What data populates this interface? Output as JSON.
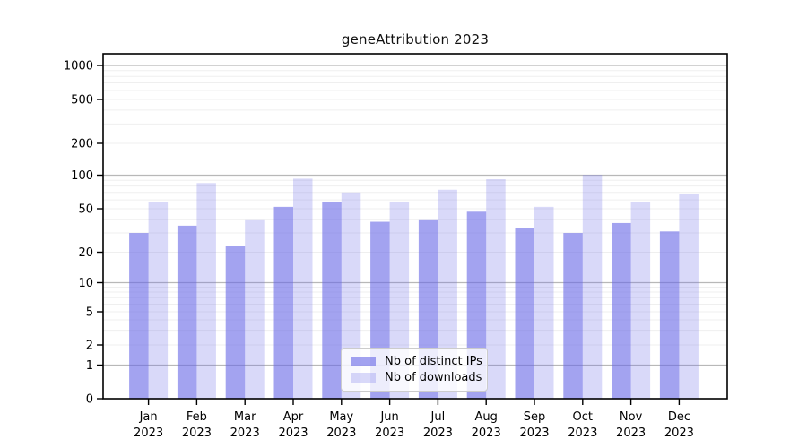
{
  "figure": {
    "title": "geneAttribution 2023"
  },
  "chart_data": {
    "type": "bar",
    "title": "geneAttribution 2023",
    "categories": [
      "Jan 2023",
      "Feb 2023",
      "Mar 2023",
      "Apr 2023",
      "May 2023",
      "Jun 2023",
      "Jul 2023",
      "Aug 2023",
      "Sep 2023",
      "Oct 2023",
      "Nov 2023",
      "Dec 2023"
    ],
    "series": [
      {
        "name": "Nb of distinct IPs",
        "color": "#6666E6",
        "alpha": 0.6,
        "values": [
          30,
          35,
          23,
          52,
          58,
          38,
          40,
          47,
          33,
          30,
          37,
          31
        ]
      },
      {
        "name": "Nb of downloads",
        "color": "#6666E6",
        "alpha": 0.25,
        "values": [
          57,
          85,
          40,
          93,
          70,
          58,
          74,
          92,
          52,
          101,
          57,
          68
        ]
      }
    ],
    "xlabel": "",
    "ylabel": "",
    "y_scale": "log-like",
    "y_ticks": [
      0,
      1,
      2,
      5,
      10,
      20,
      50,
      100,
      200,
      500,
      1000
    ],
    "y_tick_labels": [
      "0",
      "1",
      "2",
      "5",
      "10",
      "20",
      "50",
      "100",
      "200",
      "500",
      "1000"
    ],
    "ylim": [
      0,
      1400
    ],
    "grid": true,
    "legend_position": "bottom-center"
  },
  "legend": {
    "items": [
      {
        "label": "Nb of distinct IPs"
      },
      {
        "label": "Nb of downloads"
      }
    ]
  },
  "colors": {
    "bar_distinct_ips": "#A3A3EC",
    "bar_downloads": "#D9D9F4",
    "grid_major": "#B8B8B8",
    "grid_minor": "#EFEFEF",
    "axis": "#000000",
    "text": "#000000",
    "legend_border": "#CCCCCC",
    "background": "#FFFFFF"
  }
}
